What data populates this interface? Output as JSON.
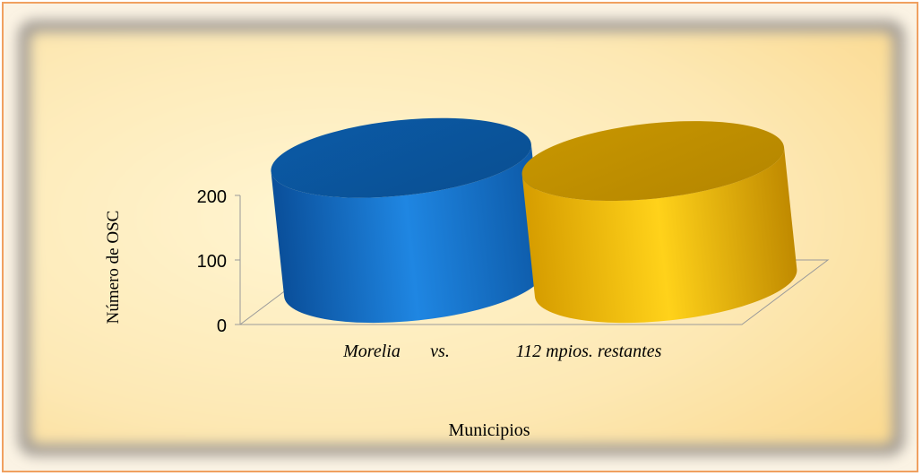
{
  "chart_data": {
    "type": "bar",
    "style": "3d-cylinder",
    "categories": [
      "Morelia",
      "112 mpios. restantes"
    ],
    "separator": "vs.",
    "series": [
      {
        "values": [
          205,
          200
        ],
        "colors": [
          "#0f6dc9",
          "#f3c000"
        ]
      }
    ],
    "xlabel": "Municipios",
    "ylabel": "Número de OSC",
    "yticks": [
      0,
      100,
      200
    ],
    "ylim": [
      0,
      200
    ],
    "grid": false,
    "legend": "none"
  }
}
